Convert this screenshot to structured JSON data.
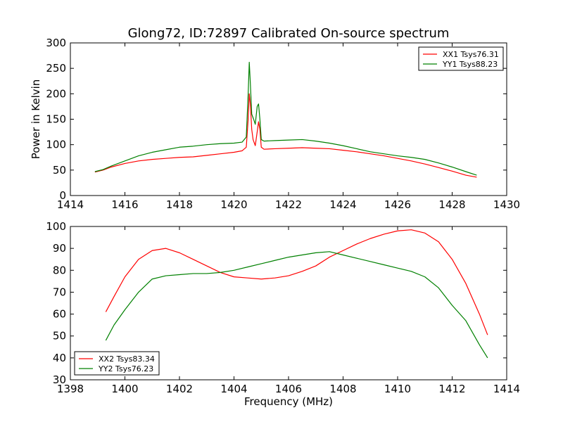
{
  "chart_data": [
    {
      "type": "line",
      "title": "Glong72, ID:72897 Calibrated On-source spectrum",
      "xlabel": "",
      "ylabel": "Power in Kelvin",
      "xlim": [
        1414,
        1430
      ],
      "ylim": [
        0,
        300
      ],
      "xticks": [
        1414,
        1416,
        1418,
        1420,
        1422,
        1424,
        1426,
        1428,
        1430
      ],
      "yticks": [
        0,
        50,
        100,
        150,
        200,
        250,
        300
      ],
      "legend_position": "upper right",
      "grid": false,
      "series": [
        {
          "name": "XX1 Tsys76.31",
          "color": "#ff0000",
          "points": [
            [
              1414.9,
              46
            ],
            [
              1415.2,
              50
            ],
            [
              1415.5,
              56
            ],
            [
              1416.0,
              63
            ],
            [
              1416.5,
              68
            ],
            [
              1417.0,
              71
            ],
            [
              1417.5,
              73
            ],
            [
              1418.0,
              75
            ],
            [
              1418.5,
              76
            ],
            [
              1419.0,
              79
            ],
            [
              1419.5,
              82
            ],
            [
              1420.0,
              85
            ],
            [
              1420.3,
              88
            ],
            [
              1420.45,
              95
            ],
            [
              1420.52,
              150
            ],
            [
              1420.56,
              200
            ],
            [
              1420.6,
              180
            ],
            [
              1420.65,
              130
            ],
            [
              1420.7,
              110
            ],
            [
              1420.78,
              98
            ],
            [
              1420.85,
              125
            ],
            [
              1420.9,
              145
            ],
            [
              1420.95,
              130
            ],
            [
              1421.0,
              95
            ],
            [
              1421.1,
              91
            ],
            [
              1421.5,
              92
            ],
            [
              1422.0,
              93
            ],
            [
              1422.5,
              94
            ],
            [
              1423.0,
              93
            ],
            [
              1423.5,
              92
            ],
            [
              1424.0,
              89
            ],
            [
              1424.5,
              86
            ],
            [
              1425.0,
              82
            ],
            [
              1425.5,
              78
            ],
            [
              1426.0,
              73
            ],
            [
              1426.5,
              68
            ],
            [
              1427.0,
              62
            ],
            [
              1427.5,
              55
            ],
            [
              1428.0,
              48
            ],
            [
              1428.5,
              40
            ],
            [
              1428.9,
              36
            ]
          ]
        },
        {
          "name": "YY1 Tsys88.23",
          "color": "#008000",
          "points": [
            [
              1414.9,
              47
            ],
            [
              1415.2,
              51
            ],
            [
              1415.5,
              58
            ],
            [
              1416.0,
              68
            ],
            [
              1416.5,
              78
            ],
            [
              1417.0,
              85
            ],
            [
              1417.5,
              90
            ],
            [
              1418.0,
              95
            ],
            [
              1418.5,
              97
            ],
            [
              1419.0,
              100
            ],
            [
              1419.5,
              102
            ],
            [
              1420.0,
              103
            ],
            [
              1420.3,
              105
            ],
            [
              1420.45,
              115
            ],
            [
              1420.52,
              200
            ],
            [
              1420.56,
              262
            ],
            [
              1420.6,
              220
            ],
            [
              1420.65,
              160
            ],
            [
              1420.72,
              150
            ],
            [
              1420.78,
              140
            ],
            [
              1420.85,
              175
            ],
            [
              1420.9,
              180
            ],
            [
              1420.95,
              150
            ],
            [
              1421.0,
              110
            ],
            [
              1421.1,
              107
            ],
            [
              1421.5,
              108
            ],
            [
              1422.0,
              109
            ],
            [
              1422.5,
              110
            ],
            [
              1423.0,
              107
            ],
            [
              1423.5,
              103
            ],
            [
              1424.0,
              98
            ],
            [
              1424.5,
              92
            ],
            [
              1425.0,
              86
            ],
            [
              1425.5,
              82
            ],
            [
              1426.0,
              78
            ],
            [
              1426.5,
              75
            ],
            [
              1427.0,
              71
            ],
            [
              1427.5,
              64
            ],
            [
              1428.0,
              56
            ],
            [
              1428.5,
              47
            ],
            [
              1428.9,
              40
            ]
          ]
        }
      ]
    },
    {
      "type": "line",
      "title": "",
      "xlabel": "Frequency (MHz)",
      "ylabel": "",
      "xlim": [
        1398,
        1414
      ],
      "ylim": [
        30,
        100
      ],
      "xticks": [
        1398,
        1400,
        1402,
        1404,
        1406,
        1408,
        1410,
        1412,
        1414
      ],
      "yticks": [
        30,
        40,
        50,
        60,
        70,
        80,
        90,
        100
      ],
      "legend_position": "lower left",
      "grid": false,
      "series": [
        {
          "name": "XX2 Tsys83.34",
          "color": "#ff0000",
          "points": [
            [
              1399.3,
              61
            ],
            [
              1399.6,
              68
            ],
            [
              1400.0,
              77
            ],
            [
              1400.5,
              85
            ],
            [
              1401.0,
              89
            ],
            [
              1401.5,
              90
            ],
            [
              1402.0,
              88
            ],
            [
              1402.5,
              85
            ],
            [
              1403.0,
              82
            ],
            [
              1403.5,
              79
            ],
            [
              1404.0,
              77
            ],
            [
              1404.5,
              76.5
            ],
            [
              1405.0,
              76
            ],
            [
              1405.5,
              76.5
            ],
            [
              1406.0,
              77.5
            ],
            [
              1406.5,
              79.5
            ],
            [
              1407.0,
              82
            ],
            [
              1407.5,
              86
            ],
            [
              1408.0,
              89
            ],
            [
              1408.5,
              92
            ],
            [
              1409.0,
              94.5
            ],
            [
              1409.5,
              96.5
            ],
            [
              1410.0,
              98
            ],
            [
              1410.5,
              98.5
            ],
            [
              1411.0,
              97
            ],
            [
              1411.5,
              93
            ],
            [
              1412.0,
              85
            ],
            [
              1412.5,
              74
            ],
            [
              1413.0,
              60
            ],
            [
              1413.3,
              50.5
            ]
          ]
        },
        {
          "name": "YY2 Tsys76.23",
          "color": "#008000",
          "points": [
            [
              1399.3,
              48
            ],
            [
              1399.6,
              55
            ],
            [
              1400.0,
              62
            ],
            [
              1400.5,
              70
            ],
            [
              1401.0,
              76
            ],
            [
              1401.5,
              77.5
            ],
            [
              1402.0,
              78
            ],
            [
              1402.5,
              78.5
            ],
            [
              1403.0,
              78.5
            ],
            [
              1403.5,
              79
            ],
            [
              1404.0,
              80
            ],
            [
              1404.5,
              81.5
            ],
            [
              1405.0,
              83
            ],
            [
              1405.5,
              84.5
            ],
            [
              1406.0,
              86
            ],
            [
              1406.5,
              87
            ],
            [
              1407.0,
              88
            ],
            [
              1407.5,
              88.5
            ],
            [
              1408.0,
              87
            ],
            [
              1408.5,
              85.5
            ],
            [
              1409.0,
              84
            ],
            [
              1409.5,
              82.5
            ],
            [
              1410.0,
              81
            ],
            [
              1410.5,
              79.5
            ],
            [
              1411.0,
              77
            ],
            [
              1411.5,
              72
            ],
            [
              1412.0,
              64
            ],
            [
              1412.5,
              57
            ],
            [
              1413.0,
              46
            ],
            [
              1413.3,
              40
            ]
          ]
        }
      ]
    }
  ]
}
